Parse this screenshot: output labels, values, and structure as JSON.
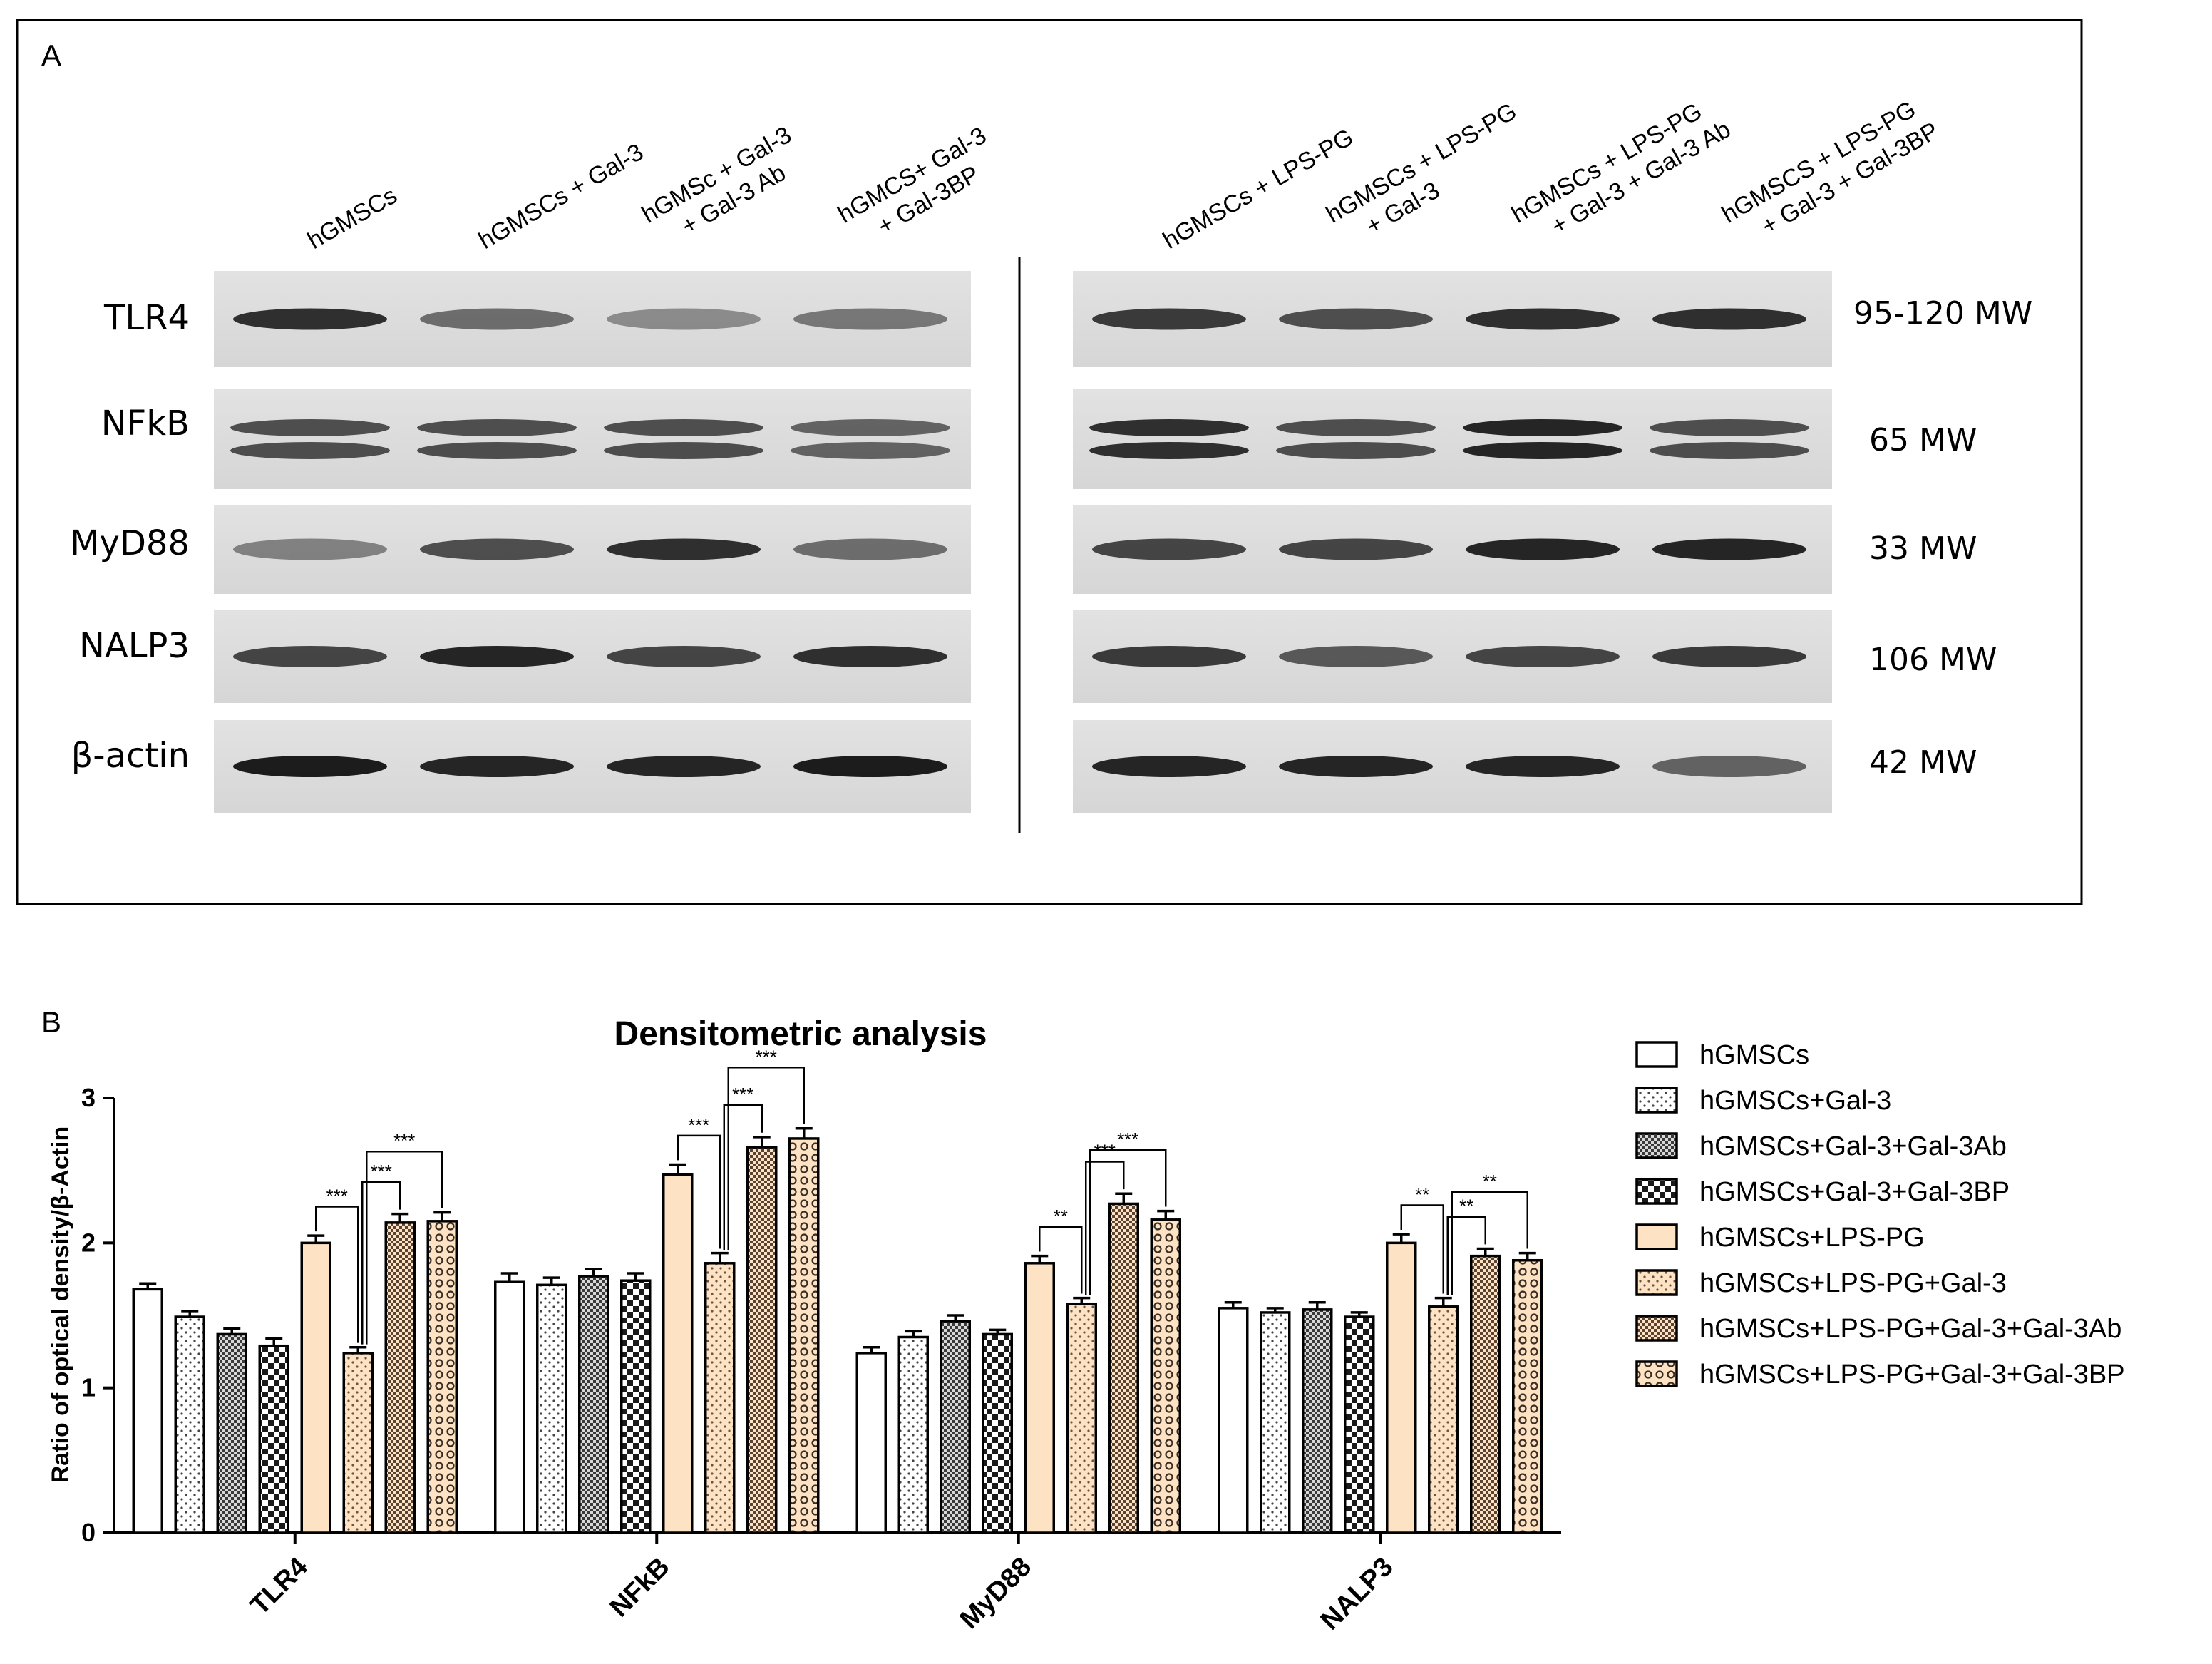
{
  "panel_a": {
    "panel_label": "A",
    "lanes_left": [
      [
        "hGMSCs"
      ],
      [
        "hGMSCs + Gal-3"
      ],
      [
        "hGMSc + Gal-3",
        "+ Gal-3 Ab"
      ],
      [
        "hGMCS+ Gal-3",
        "+ Gal-3BP"
      ]
    ],
    "lanes_right": [
      [
        "hGMSCs + LPS-PG"
      ],
      [
        "hGMSCs + LPS-PG",
        "+ Gal-3"
      ],
      [
        "hGMSCs + LPS-PG",
        "+ Gal-3 + Gal-3 Ab"
      ],
      [
        "hGMSCS + LPS-PG",
        "+ Gal-3 + Gal-3BP"
      ]
    ],
    "proteins": [
      {
        "name": "TLR4",
        "mw": "95-120 MW"
      },
      {
        "name": "NFkB",
        "mw": "65 MW"
      },
      {
        "name": "MyD88",
        "mw": "33 MW"
      },
      {
        "name": "NALP3",
        "mw": "106 MW"
      },
      {
        "name": "β-actin",
        "mw": "42 MW"
      }
    ],
    "band_intensity": {
      "TLR4": [
        0.85,
        0.55,
        0.4,
        0.5,
        0.8,
        0.7,
        0.85,
        0.85
      ],
      "NFkB": [
        0.7,
        0.7,
        0.7,
        0.6,
        0.85,
        0.7,
        0.9,
        0.7
      ],
      "MyD88": [
        0.45,
        0.7,
        0.85,
        0.55,
        0.75,
        0.75,
        0.9,
        0.9
      ],
      "NALP3": [
        0.75,
        0.9,
        0.75,
        0.85,
        0.8,
        0.65,
        0.75,
        0.8
      ],
      "β-actin": [
        0.95,
        0.9,
        0.9,
        0.95,
        0.9,
        0.9,
        0.9,
        0.6
      ]
    }
  },
  "chart_data": {
    "type": "bar",
    "panel_label": "B",
    "title": "Densitometric analysis",
    "xlabel": "",
    "ylabel": "Ratio of optical density/β-Actin",
    "ylim": [
      0,
      3
    ],
    "yticks": [
      "0",
      "1",
      "2",
      "3"
    ],
    "categories": [
      "TLR4",
      "NFkB",
      "MyD88",
      "NALP3"
    ],
    "series": [
      {
        "name": "hGMSCs",
        "fill": "#ffffff",
        "pattern": "none",
        "values": [
          1.68,
          1.73,
          1.24,
          1.55
        ],
        "errors": [
          0.04,
          0.06,
          0.04,
          0.04
        ]
      },
      {
        "name": "hGMSCs+Gal-3",
        "fill": "#ffffff",
        "pattern": "dots",
        "values": [
          1.49,
          1.71,
          1.35,
          1.52
        ],
        "errors": [
          0.04,
          0.05,
          0.04,
          0.03
        ]
      },
      {
        "name": "hGMSCs+Gal-3+Gal-3Ab",
        "fill": "#9a9a9a",
        "pattern": "fine-check",
        "values": [
          1.37,
          1.77,
          1.46,
          1.54
        ],
        "errors": [
          0.04,
          0.05,
          0.04,
          0.05
        ]
      },
      {
        "name": "hGMSCs+Gal-3+Gal-3BP",
        "fill": "#222222",
        "pattern": "coarse-check",
        "values": [
          1.29,
          1.74,
          1.37,
          1.49
        ],
        "errors": [
          0.05,
          0.05,
          0.03,
          0.03
        ]
      },
      {
        "name": "hGMSCs+LPS-PG",
        "fill": "#fde3c4",
        "pattern": "none",
        "values": [
          2.0,
          2.47,
          1.86,
          2.0
        ],
        "errors": [
          0.05,
          0.07,
          0.05,
          0.06
        ]
      },
      {
        "name": "hGMSCs+LPS-PG+Gal-3",
        "fill": "#fde3c4",
        "pattern": "dots",
        "values": [
          1.24,
          1.86,
          1.58,
          1.56
        ],
        "errors": [
          0.04,
          0.07,
          0.04,
          0.06
        ]
      },
      {
        "name": "hGMSCs+LPS-PG+Gal-3+Gal-3Ab",
        "fill": "#8a6e56",
        "pattern": "fine-check",
        "values": [
          2.14,
          2.66,
          2.27,
          1.91
        ],
        "errors": [
          0.06,
          0.07,
          0.07,
          0.05
        ]
      },
      {
        "name": "hGMSCs+LPS-PG+Gal-3+Gal-3BP",
        "fill": "#fde3c4",
        "pattern": "rings",
        "values": [
          2.15,
          2.72,
          2.16,
          1.88
        ],
        "errors": [
          0.06,
          0.07,
          0.06,
          0.05
        ]
      }
    ],
    "significance": [
      {
        "category": 0,
        "from": 4,
        "to": 5,
        "label": "***"
      },
      {
        "category": 0,
        "from": 5,
        "to": 6,
        "label": "***"
      },
      {
        "category": 0,
        "from": 5,
        "to": 7,
        "label": "***"
      },
      {
        "category": 1,
        "from": 4,
        "to": 5,
        "label": "***"
      },
      {
        "category": 1,
        "from": 5,
        "to": 6,
        "label": "***"
      },
      {
        "category": 1,
        "from": 5,
        "to": 7,
        "label": "***"
      },
      {
        "category": 2,
        "from": 4,
        "to": 5,
        "label": "**"
      },
      {
        "category": 2,
        "from": 5,
        "to": 6,
        "label": "***"
      },
      {
        "category": 2,
        "from": 5,
        "to": 7,
        "label": "***"
      },
      {
        "category": 3,
        "from": 4,
        "to": 5,
        "label": "**"
      },
      {
        "category": 3,
        "from": 5,
        "to": 6,
        "label": "**"
      },
      {
        "category": 3,
        "from": 5,
        "to": 7,
        "label": "**"
      }
    ],
    "legend_position": "right"
  }
}
